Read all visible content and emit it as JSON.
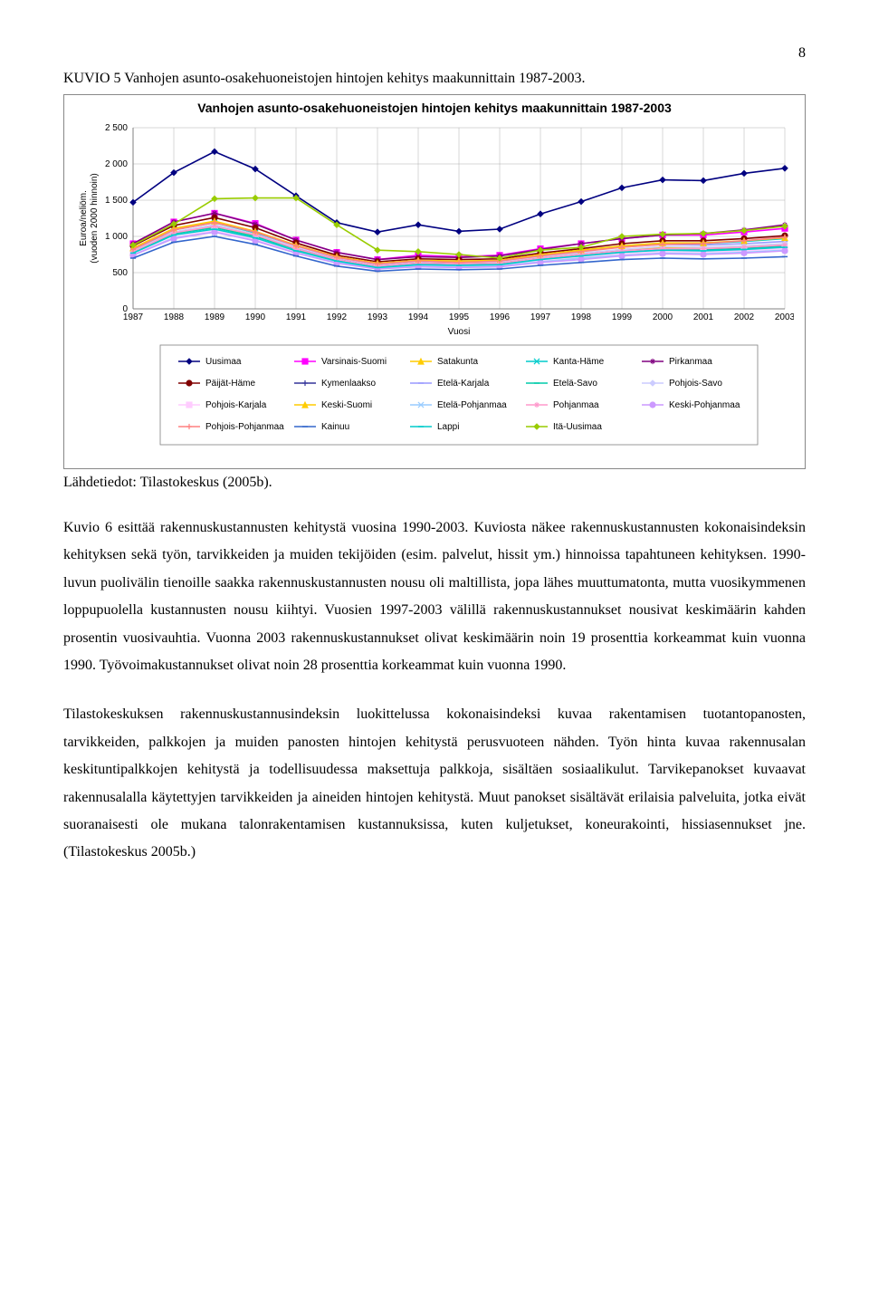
{
  "page_number": "8",
  "figure_title": "KUVIO 5 Vanhojen asunto-osakehuoneistojen hintojen kehitys maakunnittain 1987-2003.",
  "chart": {
    "type": "line",
    "title": "Vanhojen asunto-osakehuoneistojen hintojen kehitys maakunnittain 1987-2003",
    "xlabel": "Vuosi",
    "ylabel": "Euroa/neliöm.\n(vuoden 2000 hinnoin)",
    "years": [
      1987,
      1988,
      1989,
      1990,
      1991,
      1992,
      1993,
      1994,
      1995,
      1996,
      1997,
      1998,
      1999,
      2000,
      2001,
      2002,
      2003
    ],
    "ylim": [
      0,
      2500
    ],
    "ytick_step": 500,
    "background_color": "#ffffff",
    "plot_background": "#ffffff",
    "grid_color": "#b0b0b0",
    "axis_color": "#808080",
    "title_fontsize": 14,
    "label_fontsize": 10,
    "tick_fontsize": 10,
    "line_width": 1.6,
    "marker_size": 4,
    "series": [
      {
        "name": "Uusimaa",
        "color": "#000080",
        "marker": "diamond",
        "values": [
          1470,
          1880,
          2170,
          1930,
          1560,
          1190,
          1060,
          1160,
          1070,
          1100,
          1310,
          1480,
          1670,
          1780,
          1770,
          1870,
          1940
        ]
      },
      {
        "name": "Varsinais-Suomi",
        "color": "#ff00ff",
        "marker": "square",
        "values": [
          900,
          1200,
          1320,
          1180,
          950,
          780,
          680,
          740,
          720,
          740,
          830,
          900,
          970,
          1020,
          1020,
          1060,
          1110
        ]
      },
      {
        "name": "Satakunta",
        "color": "#ffcc00",
        "marker": "triangle",
        "values": [
          780,
          1040,
          1130,
          1010,
          830,
          690,
          600,
          650,
          630,
          640,
          710,
          760,
          820,
          850,
          840,
          860,
          890
        ]
      },
      {
        "name": "Kanta-Häme",
        "color": "#00cccc",
        "marker": "x",
        "values": [
          820,
          1090,
          1190,
          1050,
          870,
          710,
          620,
          660,
          650,
          660,
          730,
          800,
          860,
          900,
          900,
          930,
          970
        ]
      },
      {
        "name": "Pirkanmaa",
        "color": "#800080",
        "marker": "star",
        "values": [
          900,
          1200,
          1320,
          1170,
          950,
          780,
          680,
          720,
          710,
          730,
          820,
          900,
          970,
          1020,
          1040,
          1090,
          1160
        ]
      },
      {
        "name": "Päijät-Häme",
        "color": "#800000",
        "marker": "circle",
        "values": [
          870,
          1150,
          1260,
          1120,
          910,
          740,
          650,
          690,
          680,
          690,
          770,
          830,
          900,
          940,
          940,
          970,
          1010
        ]
      },
      {
        "name": "Kymenlaakso",
        "color": "#333399",
        "marker": "plus",
        "values": [
          800,
          1060,
          1150,
          1030,
          840,
          690,
          600,
          640,
          620,
          630,
          700,
          750,
          800,
          830,
          820,
          840,
          870
        ]
      },
      {
        "name": "Etelä-Karjala",
        "color": "#9999ff",
        "marker": "dash",
        "values": [
          830,
          1100,
          1200,
          1060,
          870,
          720,
          630,
          670,
          660,
          670,
          740,
          800,
          850,
          890,
          880,
          900,
          930
        ]
      },
      {
        "name": "Etelä-Savo",
        "color": "#00ccaa",
        "marker": "dash",
        "values": [
          780,
          1040,
          1120,
          1000,
          820,
          670,
          580,
          620,
          610,
          620,
          690,
          740,
          790,
          820,
          810,
          830,
          860
        ]
      },
      {
        "name": "Pohjois-Savo",
        "color": "#ccccff",
        "marker": "diamond",
        "values": [
          800,
          1060,
          1160,
          1030,
          850,
          700,
          610,
          650,
          640,
          650,
          720,
          770,
          820,
          860,
          850,
          870,
          900
        ]
      },
      {
        "name": "Pohjois-Karjala",
        "color": "#ffccff",
        "marker": "square",
        "values": [
          750,
          990,
          1080,
          960,
          790,
          650,
          560,
          600,
          590,
          600,
          660,
          710,
          760,
          790,
          780,
          800,
          830
        ]
      },
      {
        "name": "Keski-Suomi",
        "color": "#ffcc00",
        "marker": "triangle",
        "values": [
          840,
          1110,
          1210,
          1070,
          880,
          720,
          630,
          670,
          660,
          670,
          750,
          810,
          870,
          910,
          910,
          940,
          980
        ]
      },
      {
        "name": "Etelä-Pohjanmaa",
        "color": "#99ccff",
        "marker": "x",
        "values": [
          740,
          980,
          1060,
          940,
          770,
          640,
          560,
          590,
          580,
          590,
          650,
          700,
          740,
          770,
          760,
          780,
          810
        ]
      },
      {
        "name": "Pohjanmaa",
        "color": "#ff99cc",
        "marker": "star",
        "values": [
          790,
          1050,
          1140,
          1020,
          830,
          680,
          590,
          630,
          620,
          630,
          700,
          750,
          800,
          830,
          830,
          850,
          880
        ]
      },
      {
        "name": "Keski-Pohjanmaa",
        "color": "#cc99ff",
        "marker": "circle",
        "values": [
          740,
          970,
          1060,
          940,
          770,
          630,
          550,
          580,
          570,
          580,
          640,
          680,
          730,
          760,
          750,
          770,
          800
        ]
      },
      {
        "name": "Pohjois-Pohjanmaa",
        "color": "#ff8080",
        "marker": "plus",
        "values": [
          820,
          1090,
          1190,
          1060,
          870,
          710,
          620,
          660,
          640,
          660,
          730,
          790,
          850,
          890,
          900,
          940,
          990
        ]
      },
      {
        "name": "Kainuu",
        "color": "#3366cc",
        "marker": "dash",
        "values": [
          700,
          920,
          1000,
          890,
          730,
          590,
          520,
          550,
          540,
          550,
          600,
          640,
          680,
          700,
          690,
          700,
          720
        ]
      },
      {
        "name": "Lappi",
        "color": "#00cccc",
        "marker": "dash",
        "values": [
          770,
          1020,
          1100,
          980,
          800,
          660,
          570,
          610,
          600,
          610,
          680,
          730,
          780,
          810,
          800,
          820,
          850
        ]
      },
      {
        "name": "Itä-Uusimaa",
        "color": "#99cc00",
        "marker": "diamond",
        "values": [
          880,
          1170,
          1520,
          1530,
          1530,
          1160,
          810,
          790,
          750,
          700,
          810,
          850,
          1000,
          1030,
          1040,
          1080,
          1140
        ]
      }
    ],
    "legend_cols": 5
  },
  "source_line": "Lähdetiedot: Tilastokeskus (2005b).",
  "paragraphs": [
    "Kuvio 6 esittää rakennuskustannusten kehitystä vuosina 1990-2003. Kuviosta näkee rakennuskustannusten kokonaisindeksin kehityksen sekä työn, tarvikkeiden ja muiden tekijöiden (esim. palvelut, hissit ym.) hinnoissa tapahtuneen kehityksen. 1990-luvun puolivälin tienoille saakka rakennuskustannusten nousu oli maltillista, jopa lähes muuttumatonta, mutta vuosikymmenen loppupuolella kustannusten nousu kiihtyi. Vuosien 1997-2003 välillä rakennuskustannukset nousivat keskimäärin kahden prosentin vuosivauhtia. Vuonna 2003 rakennuskustannukset olivat keskimäärin noin 19 prosenttia korkeammat kuin vuonna 1990. Työvoimakustannukset olivat noin 28 prosenttia korkeammat kuin vuonna 1990.",
    "Tilastokeskuksen rakennuskustannusindeksin luokittelussa kokonaisindeksi kuvaa rakentamisen tuotantopanosten, tarvikkeiden, palkkojen ja muiden panosten hintojen kehitystä perusvuoteen nähden. Työn hinta kuvaa rakennusalan keskituntipalkkojen kehitystä ja todellisuudessa maksettuja palkkoja, sisältäen sosiaalikulut. Tarvikepanokset kuvaavat rakennusalalla käytettyjen tarvikkeiden ja aineiden hintojen kehitystä. Muut panokset sisältävät erilaisia palveluita, jotka eivät suoranaisesti ole mukana talonrakentamisen kustannuksissa, kuten kuljetukset, koneurakointi, hissiasennukset jne. (Tilastokeskus 2005b.)"
  ]
}
